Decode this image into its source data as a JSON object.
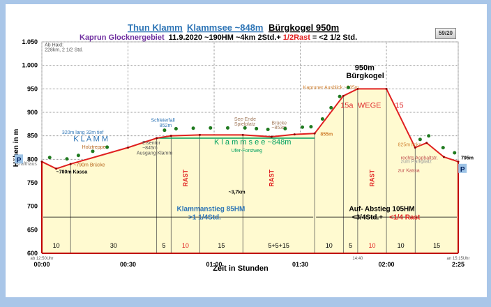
{
  "chart_data": {
    "type": "area",
    "title_parts": [
      "Thun Klamm",
      "Klammsee  ~848m",
      "Bürgkogel  950m"
    ],
    "subtitle": {
      "region": "Kaprun Glocknergebiet",
      "details": "11.9.2020   ~190HM   ~4km    2Std.+",
      "rest": "1/2Rast",
      "total": "= <2 1/2 Std."
    },
    "badge": "59/20",
    "ylabel": "Höhen in m",
    "xlabel": "Zeit in Stunden",
    "ylim": [
      600,
      1050
    ],
    "xlim_minutes": [
      0,
      145
    ],
    "yticks": [
      {
        "v": 600,
        "l": "600"
      },
      {
        "v": 650,
        "l": "650"
      },
      {
        "v": 700,
        "l": "700"
      },
      {
        "v": 750,
        "l": "750"
      },
      {
        "v": 800,
        "l": "800"
      },
      {
        "v": 850,
        "l": "850"
      },
      {
        "v": 900,
        "l": "900"
      },
      {
        "v": 950,
        "l": "950"
      },
      {
        "v": 1000,
        "l": "1.000"
      },
      {
        "v": 1050,
        "l": "1.050"
      }
    ],
    "xticks": [
      {
        "v": 0,
        "l": "00:00"
      },
      {
        "v": 30,
        "l": "00:30"
      },
      {
        "v": 60,
        "l": "01:00"
      },
      {
        "v": 90,
        "l": "01:30"
      },
      {
        "v": 120,
        "l": "02:00"
      },
      {
        "v": 145,
        "l": "2:25"
      }
    ],
    "xtick_notes": [
      {
        "v": 0,
        "l": "ab 12:50Uhr"
      },
      {
        "v": 110,
        "l": "14:40"
      },
      {
        "v": 145,
        "l": "an 15:15Uhr"
      }
    ],
    "profile": {
      "minutes": [
        0,
        5,
        10,
        30,
        40,
        45,
        55,
        70,
        80,
        88,
        95,
        105,
        110,
        120,
        130,
        134,
        140,
        145
      ],
      "elevation": [
        795,
        780,
        790,
        825,
        845,
        850,
        852,
        852,
        848,
        853,
        855,
        935,
        950,
        950,
        825,
        835,
        805,
        795
      ]
    },
    "segment_lines": [
      10,
      40,
      45,
      55,
      70,
      95,
      105,
      110,
      120,
      130
    ],
    "segments": [
      {
        "from": 0,
        "to": 10,
        "l": "10",
        "rest": false
      },
      {
        "from": 10,
        "to": 40,
        "l": "30",
        "rest": false
      },
      {
        "from": 40,
        "to": 45,
        "l": "5",
        "rest": false
      },
      {
        "from": 45,
        "to": 55,
        "l": "10",
        "rest": true
      },
      {
        "from": 55,
        "to": 70,
        "l": "15",
        "rest": false
      },
      {
        "from": 70,
        "to": 95,
        "l": "5+5+15",
        "rest": false
      },
      {
        "from": 95,
        "to": 105,
        "l": "10",
        "rest": false
      },
      {
        "from": 105,
        "to": 110,
        "l": "5",
        "rest": false
      },
      {
        "from": 110,
        "to": 120,
        "l": "10",
        "rest": true
      },
      {
        "from": 120,
        "to": 130,
        "l": "10",
        "rest": false
      },
      {
        "from": 130,
        "to": 145,
        "l": "15",
        "rest": false
      }
    ],
    "rest_labels": [
      {
        "m": 50,
        "l": "RAST"
      },
      {
        "m": 80,
        "l": "RAST"
      },
      {
        "m": 115,
        "l": "RAST"
      }
    ],
    "annotations": [
      {
        "m": 1,
        "e": 1040,
        "l": "Ab Haid:",
        "c": "#555"
      },
      {
        "m": 1,
        "e": 1030,
        "l": "228km, 2 1/2 Std.",
        "c": "#555"
      },
      {
        "m": 5,
        "e": 770,
        "l": "~780m Kassa",
        "c": "#000",
        "b": true
      },
      {
        "m": 11,
        "e": 785,
        "l": "~790m Brücke",
        "c": "#b5651d"
      },
      {
        "m": -9,
        "e": 787,
        "l": "Krafthaus",
        "c": "#777"
      },
      {
        "m": 7,
        "e": 854,
        "l": "320m lang 32m tief",
        "c": "#2e75b6"
      },
      {
        "m": 11,
        "e": 838,
        "l": "K L A M M",
        "c": "#2e75b6",
        "s": 11
      },
      {
        "m": 14,
        "e": 823,
        "l": "Holztreppen",
        "c": "#b5651d"
      },
      {
        "m": 35,
        "e": 832,
        "l": "Eisentor",
        "c": "#555"
      },
      {
        "m": 35,
        "e": 821,
        "l": "~845m",
        "c": "#555"
      },
      {
        "m": 33,
        "e": 810,
        "l": "Ausgang Klamm",
        "c": "#555"
      },
      {
        "m": 38,
        "e": 880,
        "l": "Schleierfall",
        "c": "#2e75b6"
      },
      {
        "m": 41,
        "e": 869,
        "l": "852m",
        "c": "#2e75b6"
      },
      {
        "m": 67,
        "e": 882,
        "l": "See-Ende",
        "c": "#a0785a"
      },
      {
        "m": 67,
        "e": 872,
        "l": "Spielplatz",
        "c": "#a0785a"
      },
      {
        "m": 80,
        "e": 874,
        "l": "Brücke",
        "c": "#a0785a"
      },
      {
        "m": 80,
        "e": 864,
        "l": "~853m",
        "c": "#a0785a"
      },
      {
        "m": 60,
        "e": 832,
        "l": "K l a m m s e e  ~848m",
        "c": "#00a060",
        "s": 11
      },
      {
        "m": 66,
        "e": 815,
        "l": "Ufer-Forstweg",
        "c": "#00a060"
      },
      {
        "m": 91,
        "e": 950,
        "l": "Kapruner Ausblick ~935m",
        "c": "#d08030"
      },
      {
        "m": 97,
        "e": 850,
        "l": "855m",
        "c": "#d08030",
        "b": true
      },
      {
        "m": 104,
        "e": 910,
        "l": "15a",
        "c": "#e03030",
        "s": 11
      },
      {
        "m": 110,
        "e": 910,
        "l": "WEGE",
        "c": "#e03030",
        "s": 11
      },
      {
        "m": 123,
        "e": 910,
        "l": "15",
        "c": "#e03030",
        "s": 11
      },
      {
        "m": 124,
        "e": 828,
        "l": "825m links",
        "c": "#d08030"
      },
      {
        "m": 125,
        "e": 800,
        "l": "rechts Asphaltstr.",
        "c": "#c05050"
      },
      {
        "m": 125,
        "e": 792,
        "l": "zum Parkplatz",
        "c": "#999"
      },
      {
        "m": 124,
        "e": 773,
        "l": "zur Kassa",
        "c": "#c05050"
      },
      {
        "m": 146,
        "e": 800,
        "l": "795m",
        "c": "#000",
        "b": true
      },
      {
        "m": 65,
        "e": 727,
        "l": "~3,7km",
        "c": "#000",
        "b": true
      },
      {
        "m": 109,
        "e": 990,
        "l": "950m",
        "c": "#000",
        "b": true,
        "s": 11
      },
      {
        "m": 106,
        "e": 973,
        "l": "Bürgkogel",
        "c": "#000",
        "b": true,
        "s": 11
      }
    ],
    "section_labels": [
      {
        "m": 47,
        "e": 690,
        "l": "Klammanstieg 85HM",
        "c": "#2e75b6"
      },
      {
        "m": 51,
        "e": 672,
        "l": ">1 1/4Std.",
        "c": "#2e75b6"
      },
      {
        "m": 107,
        "e": 690,
        "l": "Auf- Abstieg 105HM",
        "c": "#000"
      },
      {
        "m": 108,
        "e": 672,
        "l": "<3/4Std.+",
        "c": "#000"
      },
      {
        "m": 121,
        "e": 672,
        "l": "<1/4 Rast",
        "c": "#e02020"
      }
    ],
    "parking": "P"
  }
}
